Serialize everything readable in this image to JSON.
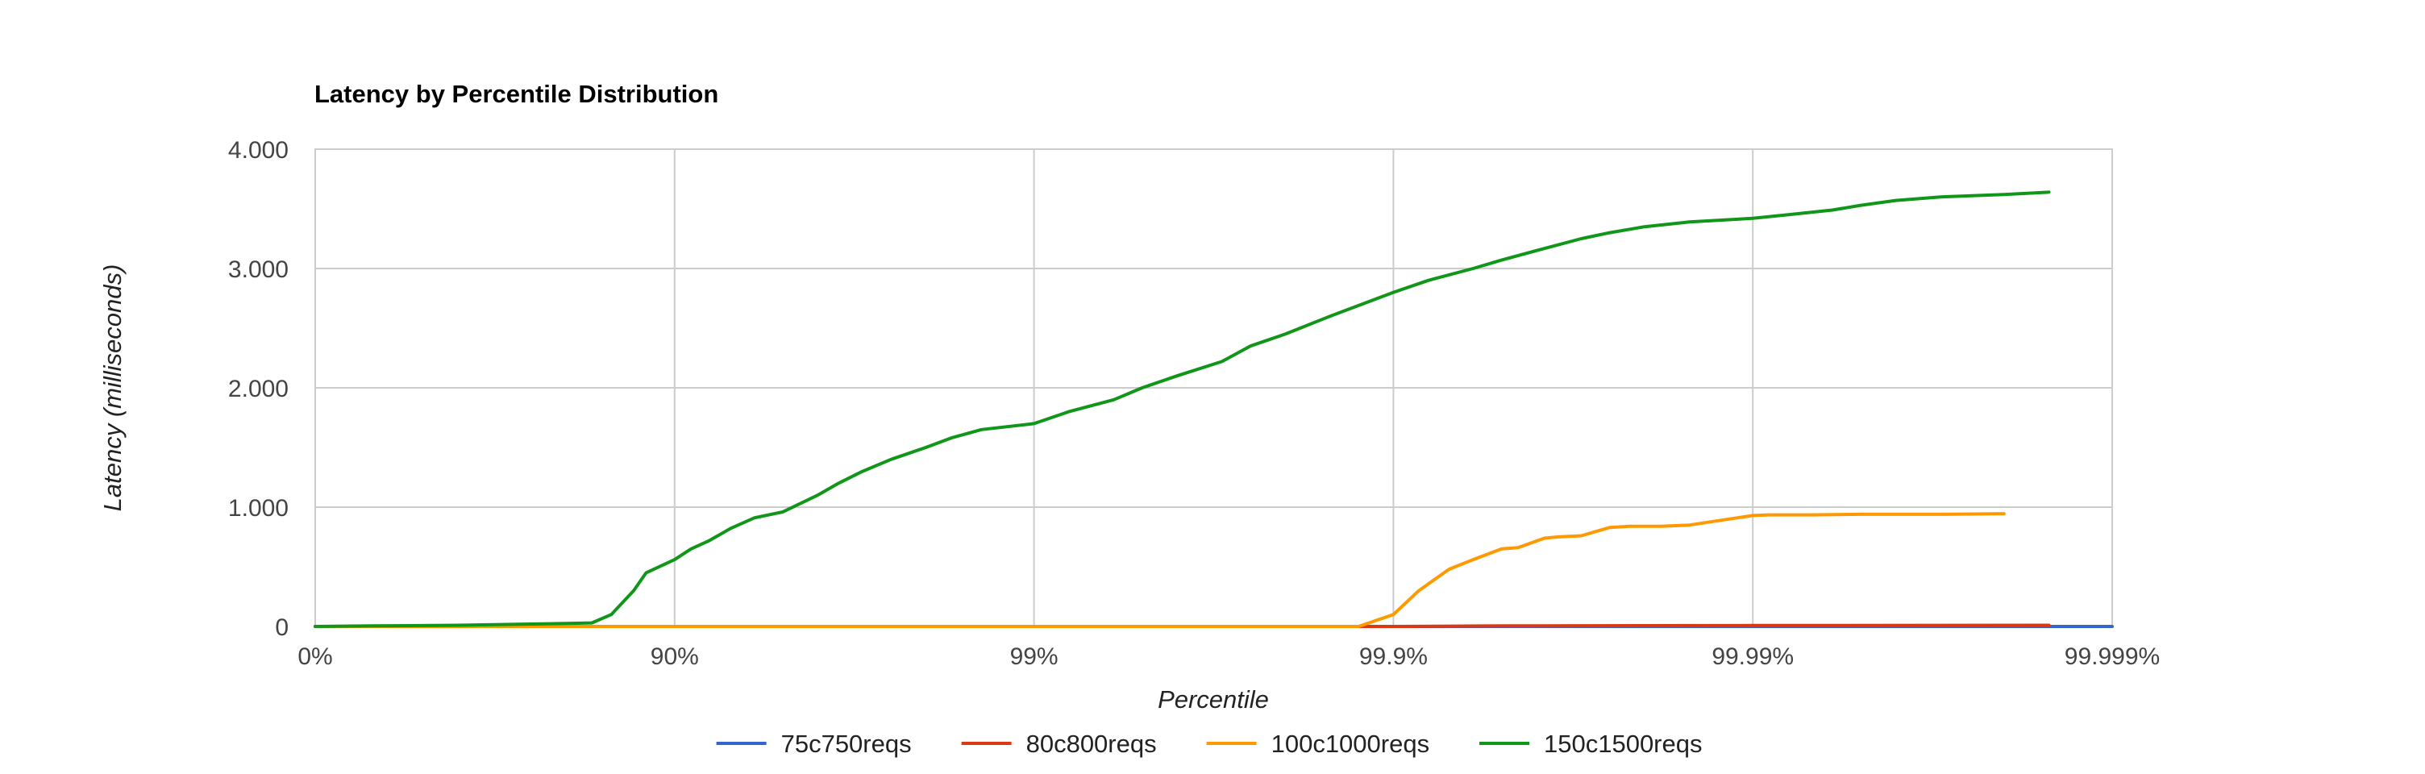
{
  "chart_data": {
    "type": "line",
    "title": "Latency by Percentile Distribution",
    "xlabel": "Percentile",
    "ylabel": "Latency (milliseconds)",
    "x_scale": "log-inverse-percentile",
    "x_ticks": [
      "0%",
      "90%",
      "99%",
      "99.9%",
      "99.99%",
      "99.999%"
    ],
    "xlim": [
      "0%",
      "99.999%"
    ],
    "ylim": [
      0,
      4000
    ],
    "y_ticks": [
      "0",
      "1.000",
      "2.000",
      "3.000",
      "4.000"
    ],
    "y_tick_values": [
      0,
      1000,
      2000,
      3000,
      4000
    ],
    "grid": true,
    "legend_position": "bottom",
    "series": [
      {
        "name": "75c750reqs",
        "color": "#3366cc",
        "x": [
          "0%",
          "99.999%"
        ],
        "y": [
          0,
          0
        ]
      },
      {
        "name": "80c800reqs",
        "color": "#dc3912",
        "x": [
          "0%",
          "90%",
          "99%",
          "99.9%",
          "99.95%",
          "99.99%",
          "99.9985%"
        ],
        "y": [
          0,
          0,
          0,
          0,
          5,
          8,
          10
        ]
      },
      {
        "name": "100c1000reqs",
        "color": "#ff9900",
        "x": [
          "0%",
          "90%",
          "99%",
          "99.85%",
          "99.875%",
          "99.9%",
          "99.915%",
          "99.93%",
          "99.94%",
          "99.95%",
          "99.955%",
          "99.962%",
          "99.965%",
          "99.97%",
          "99.975%",
          "99.978%",
          "99.98%",
          "99.982%",
          "99.985%",
          "99.99%",
          "99.991%",
          "99.993%",
          "99.995%",
          "99.997%",
          "99.998%"
        ],
        "y": [
          0,
          0,
          0,
          0,
          0,
          100,
          300,
          480,
          560,
          650,
          660,
          740,
          750,
          760,
          830,
          840,
          840,
          840,
          850,
          930,
          935,
          935,
          940,
          940,
          945
        ]
      },
      {
        "name": "150c1500reqs",
        "color": "#109618",
        "x": [
          "0%",
          "30%",
          "60%",
          "75%",
          "80%",
          "83%",
          "85%",
          "87%",
          "88%",
          "90%",
          "91%",
          "92%",
          "93%",
          "94%",
          "95%",
          "96%",
          "96.5%",
          "97%",
          "97.5%",
          "98%",
          "98.3%",
          "98.6%",
          "99%",
          "99.2%",
          "99.4%",
          "99.5%",
          "99.6%",
          "99.7%",
          "99.75%",
          "99.8%",
          "99.85%",
          "99.9%",
          "99.92%",
          "99.94%",
          "99.95%",
          "99.96%",
          "99.97%",
          "99.975%",
          "99.98%",
          "99.985%",
          "99.99%",
          "99.992%",
          "99.994%",
          "99.995%",
          "99.996%",
          "99.997%",
          "99.998%",
          "99.9985%"
        ],
        "y": [
          0,
          5,
          10,
          20,
          25,
          30,
          100,
          300,
          450,
          560,
          650,
          720,
          820,
          910,
          960,
          1100,
          1200,
          1300,
          1400,
          1500,
          1580,
          1650,
          1700,
          1800,
          1900,
          2000,
          2100,
          2220,
          2350,
          2450,
          2600,
          2800,
          2900,
          3000,
          3070,
          3150,
          3250,
          3300,
          3350,
          3390,
          3420,
          3450,
          3490,
          3530,
          3570,
          3600,
          3620,
          3640
        ]
      }
    ]
  }
}
